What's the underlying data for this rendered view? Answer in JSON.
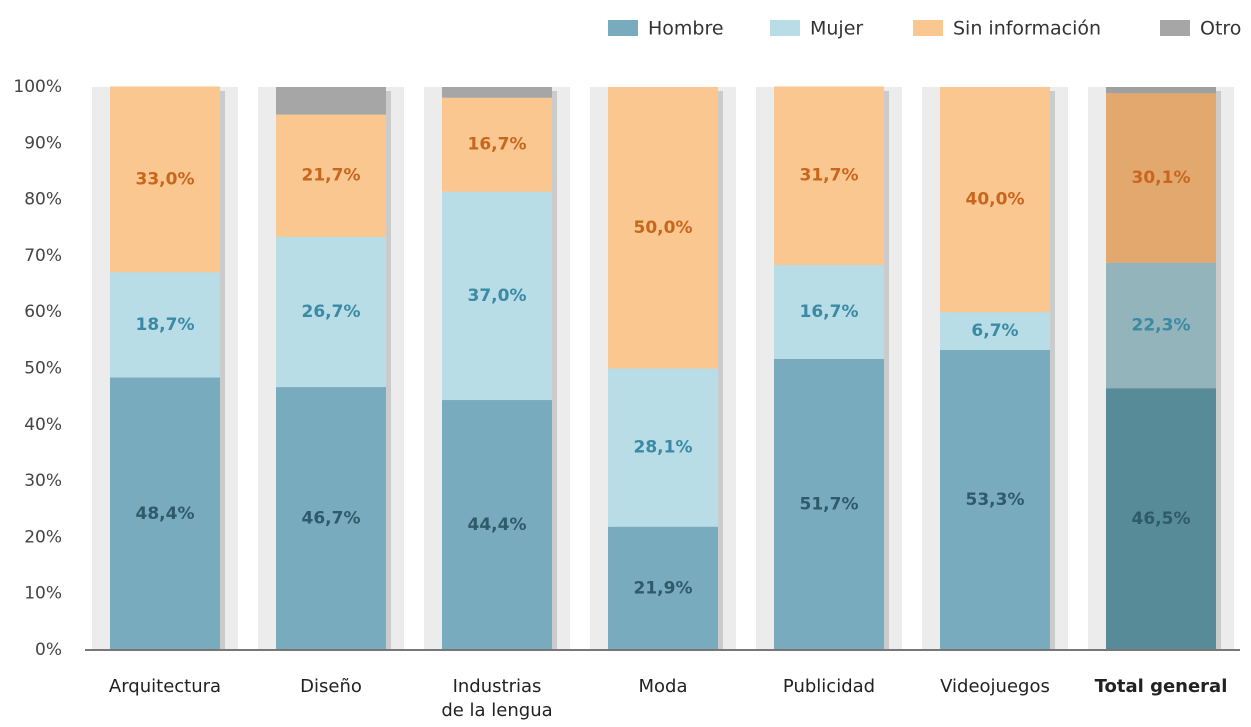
{
  "chart_data": {
    "type": "stacked_bar",
    "categories": [
      "Arquitectura",
      "Diseño",
      "Industrias\nde la lengua",
      "Moda",
      "Publicidad",
      "Videojuegos",
      "Total general"
    ],
    "highlight_index": 6,
    "series": [
      {
        "name": "Hombre",
        "color": "#78abbe",
        "highlight_color": "#568b97",
        "label_color": "#2f5a6a",
        "values": [
          48.4,
          46.7,
          44.4,
          21.9,
          51.7,
          53.3,
          46.5
        ],
        "value_labels": [
          "48,4%",
          "46,7%",
          "44,4%",
          "21,9%",
          "51,7%",
          "53,3%",
          "46,5%"
        ]
      },
      {
        "name": "Mujer",
        "color": "#b8dde6",
        "highlight_color": "#93b4bb",
        "label_color": "#3a8aa5",
        "values": [
          18.7,
          26.7,
          37.0,
          28.1,
          16.7,
          6.7,
          22.3
        ],
        "value_labels": [
          "18,7%",
          "26,7%",
          "37,0%",
          "28,1%",
          "16,7%",
          "6,7%",
          "22,3%"
        ]
      },
      {
        "name": "Sin información",
        "color": "#f9c78f",
        "highlight_color": "#e2a86e",
        "label_color": "#c9661e",
        "values": [
          33.0,
          21.7,
          16.7,
          50.0,
          31.7,
          40.0,
          30.1
        ],
        "value_labels": [
          "33,0%",
          "21,7%",
          "16,7%",
          "50,0%",
          "31,7%",
          "40,0%",
          "30,1%"
        ]
      },
      {
        "name": "Otro",
        "color": "#a6a6a6",
        "highlight_color": "#a0a0a0",
        "values": [
          0,
          4.9,
          1.9,
          0,
          0,
          0,
          1.1
        ]
      }
    ],
    "ylim": [
      0,
      100
    ],
    "yticks": [
      {
        "value": 0,
        "label": "0%"
      },
      {
        "value": 10,
        "label": "10%"
      },
      {
        "value": 20,
        "label": "20%"
      },
      {
        "value": 30,
        "label": "30%"
      },
      {
        "value": 40,
        "label": "40%"
      },
      {
        "value": 50,
        "label": "50%"
      },
      {
        "value": 60,
        "label": "60%"
      },
      {
        "value": 70,
        "label": "70%"
      },
      {
        "value": 80,
        "label": "80%"
      },
      {
        "value": 90,
        "label": "90%"
      },
      {
        "value": 100,
        "label": "100%"
      }
    ],
    "legend": "top-right"
  }
}
